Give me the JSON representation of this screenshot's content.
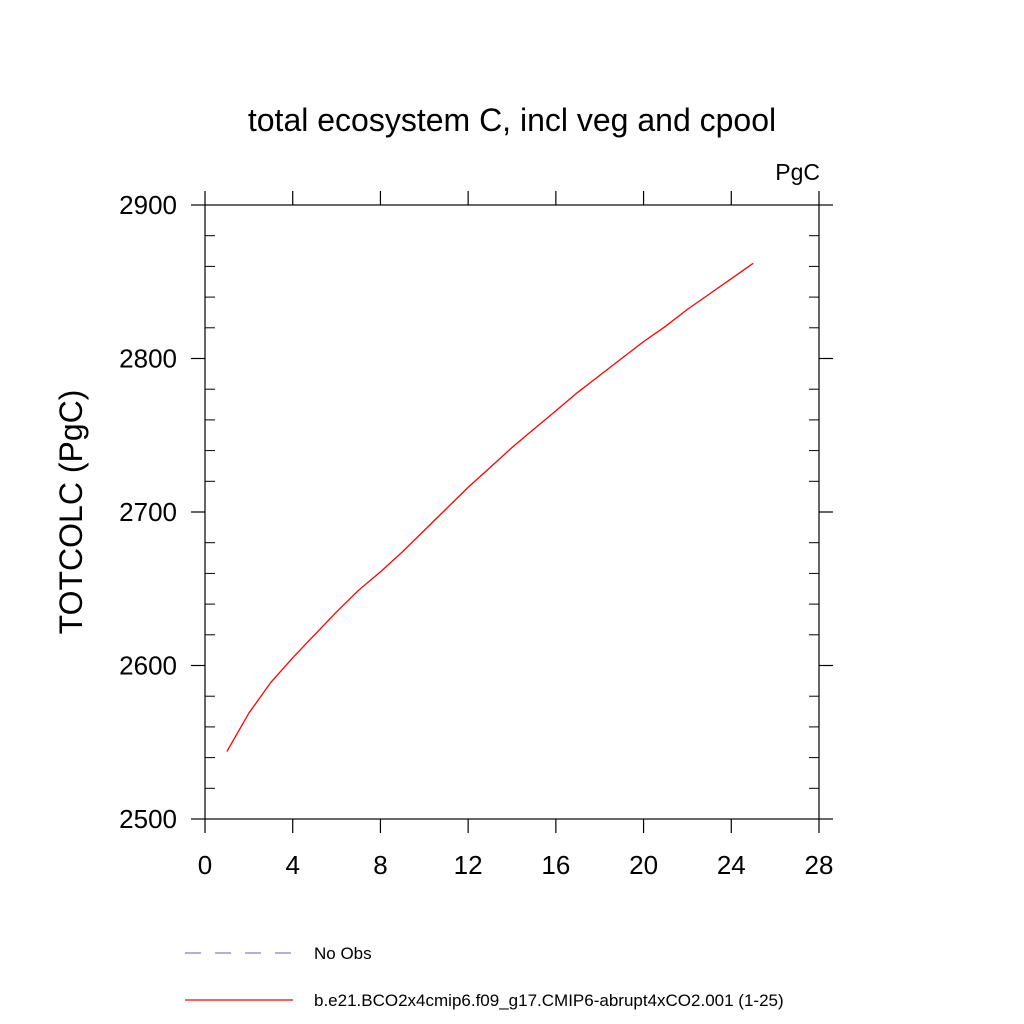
{
  "chart_data": {
    "type": "line",
    "title": "total ecosystem C, incl veg and cpool",
    "units": "PgC",
    "xlabel": "",
    "ylabel": "TOTCOLC  (PgC)",
    "xlim": [
      0,
      28
    ],
    "ylim": [
      2500,
      2900
    ],
    "xticks": [
      0,
      4,
      8,
      12,
      16,
      20,
      24,
      28
    ],
    "xtick_labels": [
      "0",
      "4",
      "8",
      "12",
      "16",
      "20",
      "24",
      "28"
    ],
    "yticks": [
      2500,
      2600,
      2700,
      2800,
      2900
    ],
    "ytick_labels": [
      "2500",
      "2600",
      "2700",
      "2800",
      "2900"
    ],
    "grid": false,
    "legend": "bottom",
    "series": [
      {
        "name": "b.e21.BCO2x4cmip6.f09_g17.CMIP6-abrupt4xCO2.001 (1-25)",
        "color": "#ff0000",
        "dash": "solid",
        "x": [
          1,
          2,
          3,
          4,
          5,
          6,
          7,
          8,
          9,
          10,
          11,
          12,
          13,
          14,
          15,
          16,
          17,
          18,
          19,
          20,
          21,
          22,
          23,
          24,
          25
        ],
        "values": [
          2544,
          2569,
          2589,
          2605,
          2620,
          2635,
          2649,
          2661,
          2674,
          2688,
          2702,
          2716,
          2729,
          2742,
          2754,
          2766,
          2778,
          2789,
          2800,
          2811,
          2821,
          2832,
          2842,
          2852,
          2862
        ]
      },
      {
        "name": "No Obs",
        "color": "#7f7fd0",
        "dash": "dashed",
        "x": [],
        "values": []
      }
    ]
  }
}
